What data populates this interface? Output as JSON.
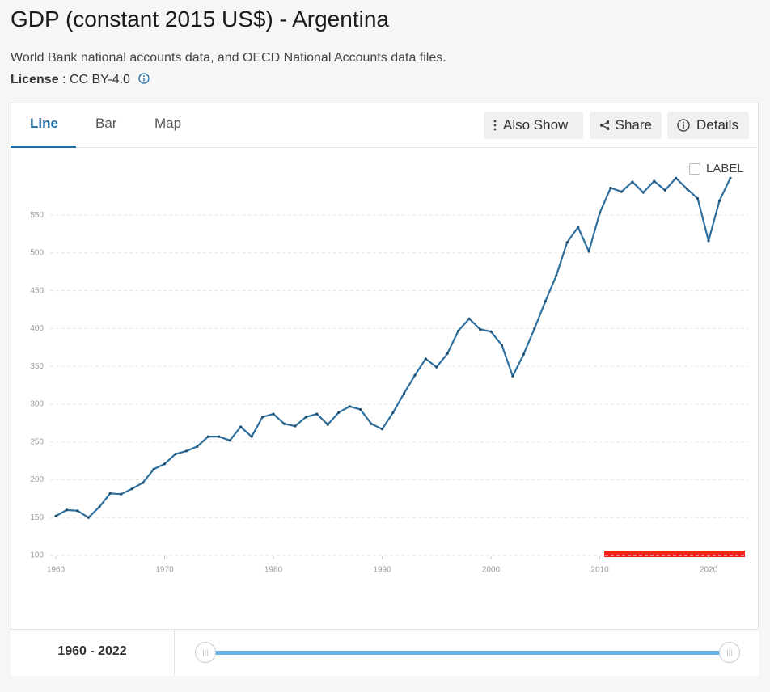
{
  "header": {
    "title": "GDP (constant 2015 US$) - Argentina",
    "source": "World Bank national accounts data, and OECD National Accounts data files.",
    "license_label": "License",
    "license_value": ": CC BY-4.0"
  },
  "tabs": [
    "Line",
    "Bar",
    "Map"
  ],
  "buttons": [
    "Also Show",
    "Share",
    "Details"
  ],
  "label_toggle": "LABEL",
  "range_label": "1960 - 2022",
  "chart_data": {
    "type": "line",
    "x": [
      1960,
      1961,
      1962,
      1963,
      1964,
      1965,
      1966,
      1967,
      1968,
      1969,
      1970,
      1971,
      1972,
      1973,
      1974,
      1975,
      1976,
      1977,
      1978,
      1979,
      1980,
      1981,
      1982,
      1983,
      1984,
      1985,
      1986,
      1987,
      1988,
      1989,
      1990,
      1991,
      1992,
      1993,
      1994,
      1995,
      1996,
      1997,
      1998,
      1999,
      2000,
      2001,
      2002,
      2003,
      2004,
      2005,
      2006,
      2007,
      2008,
      2009,
      2010,
      2011,
      2012,
      2013,
      2014,
      2015,
      2016,
      2017,
      2018,
      2019,
      2020,
      2021,
      2022
    ],
    "series": [
      {
        "color": "#2e6f9e",
        "values": [
          152,
          160,
          159,
          150,
          164,
          182,
          181,
          188,
          196,
          214,
          221,
          234,
          238,
          244,
          257,
          257,
          252,
          270,
          257,
          283,
          287,
          274,
          271,
          283,
          287,
          273,
          289,
          297,
          293,
          274,
          267,
          289,
          314,
          338,
          360,
          349,
          367,
          397,
          413,
          399,
          396,
          378,
          337,
          366,
          400,
          436,
          470,
          514,
          534,
          502,
          553,
          586,
          581,
          594,
          580,
          595,
          583,
          599,
          585,
          572,
          516,
          569,
          599
        ]
      }
    ],
    "xlim": [
      1960,
      2023
    ],
    "ylim": [
      100,
      610
    ],
    "xticks": [
      1960,
      1970,
      1980,
      1990,
      2000,
      2010,
      2020
    ],
    "yticks": [
      100,
      150,
      200,
      250,
      300,
      350,
      400,
      450,
      500,
      550
    ],
    "grid": true
  }
}
